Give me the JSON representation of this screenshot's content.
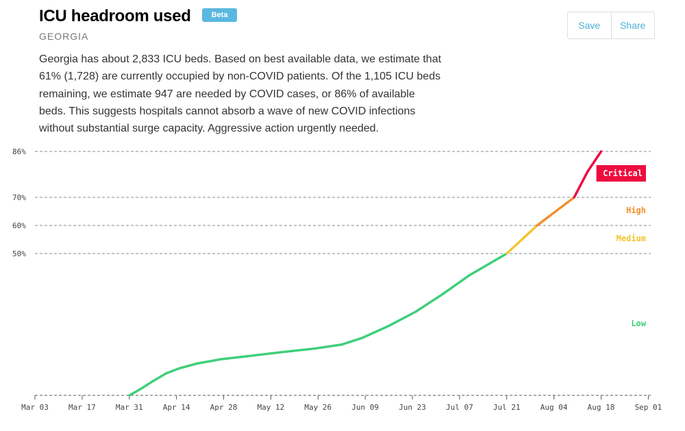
{
  "header": {
    "title": "ICU headroom used",
    "badge": "Beta",
    "region": "GEORGIA"
  },
  "actions": {
    "save_label": "Save",
    "share_label": "Share"
  },
  "summary": "Georgia has about 2,833 ICU beds. Based on best available data, we estimate that 61% (1,728) are currently occupied by non-COVID patients. Of the 1,105 ICU beds remaining, we estimate 947 are needed by COVID cases, or 86% of available beds. This suggests hospitals cannot absorb a wave of new COVID infections without substantial surge capacity. Aggressive action urgently needed.",
  "chart_data": {
    "type": "line",
    "title": "",
    "xlabel": "",
    "ylabel": "",
    "x_ticks": [
      "Mar 03",
      "Mar 17",
      "Mar 31",
      "Apr 14",
      "Apr 28",
      "May 12",
      "May 26",
      "Jun 09",
      "Jun 23",
      "Jul 07",
      "Jul 21",
      "Aug 04",
      "Aug 18",
      "Sep 01"
    ],
    "y_ticks": [
      {
        "value": 86,
        "label": "86%"
      },
      {
        "value": 70,
        "label": "70%"
      },
      {
        "value": 60,
        "label": "60%"
      },
      {
        "value": 50,
        "label": "50%"
      }
    ],
    "xlim": [
      "2020-03-03",
      "2020-09-01"
    ],
    "ylim": [
      0,
      86
    ],
    "zones": [
      {
        "name": "Low",
        "from": 0,
        "to": 50,
        "color": "#3fcf7a"
      },
      {
        "name": "Medium",
        "from": 50,
        "to": 60,
        "color": "#f2c531"
      },
      {
        "name": "High",
        "from": 60,
        "to": 70,
        "color": "#f08f2e"
      },
      {
        "name": "Critical",
        "from": 70,
        "to": 86,
        "color": "#ee0c3f"
      }
    ],
    "series": [
      {
        "points": [
          {
            "x": "2020-03-31",
            "y": 0
          },
          {
            "x": "2020-04-03",
            "y": 2
          },
          {
            "x": "2020-04-07",
            "y": 5
          },
          {
            "x": "2020-04-11",
            "y": 7.8
          },
          {
            "x": "2020-04-15",
            "y": 9.6
          },
          {
            "x": "2020-04-20",
            "y": 11.2
          },
          {
            "x": "2020-04-27",
            "y": 12.7
          },
          {
            "x": "2020-05-05",
            "y": 13.8
          },
          {
            "x": "2020-05-15",
            "y": 15.2
          },
          {
            "x": "2020-05-25",
            "y": 16.5
          },
          {
            "x": "2020-06-02",
            "y": 17.9
          },
          {
            "x": "2020-06-08",
            "y": 20.2
          },
          {
            "x": "2020-06-16",
            "y": 24.5
          },
          {
            "x": "2020-06-24",
            "y": 29.5
          },
          {
            "x": "2020-07-02",
            "y": 35.7
          },
          {
            "x": "2020-07-10",
            "y": 42.4
          },
          {
            "x": "2020-07-21",
            "y": 50
          },
          {
            "x": "2020-07-30",
            "y": 60
          },
          {
            "x": "2020-08-10",
            "y": 70
          },
          {
            "x": "2020-08-14",
            "y": 79
          },
          {
            "x": "2020-08-18",
            "y": 86
          }
        ]
      }
    ],
    "grid": true
  }
}
